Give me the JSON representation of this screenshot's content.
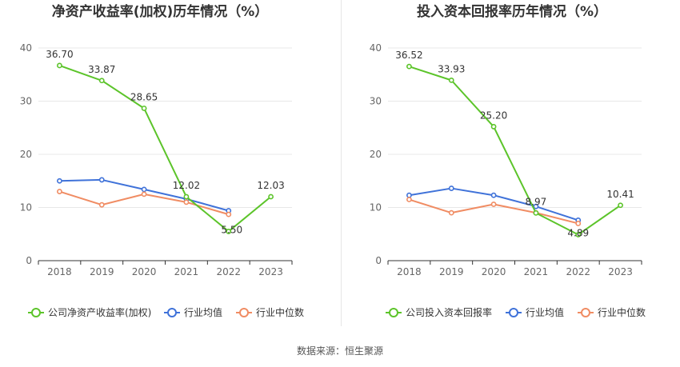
{
  "footer": {
    "source": "数据来源：恒生聚源"
  },
  "colors": {
    "company": "#5cc42a",
    "industry_avg": "#3f72d9",
    "industry_median": "#f08c63"
  },
  "chart_data": [
    {
      "type": "line",
      "title": "净资产收益率(加权)历年情况（%）",
      "categories": [
        "2018",
        "2019",
        "2020",
        "2021",
        "2022",
        "2023"
      ],
      "ylim": [
        0,
        40
      ],
      "yticks": [
        0,
        10,
        20,
        30,
        40
      ],
      "grid": true,
      "legend_position": "bottom",
      "series": [
        {
          "name": "公司净资产收益率(加权)",
          "values": [
            36.7,
            33.87,
            28.65,
            12.02,
            5.5,
            12.03
          ],
          "labels": [
            "36.70",
            "33.87",
            "28.65",
            "12.02",
            "5.50",
            "12.03"
          ],
          "color": "#5cc42a"
        },
        {
          "name": "行业均值",
          "values": [
            15.0,
            15.2,
            13.4,
            11.6,
            9.4,
            null
          ],
          "color": "#3f72d9"
        },
        {
          "name": "行业中位数",
          "values": [
            13.0,
            10.5,
            12.5,
            11.0,
            8.7,
            null
          ],
          "color": "#f08c63"
        }
      ]
    },
    {
      "type": "line",
      "title": "投入资本回报率历年情况（%）",
      "categories": [
        "2018",
        "2019",
        "2020",
        "2021",
        "2022",
        "2023"
      ],
      "ylim": [
        0,
        40
      ],
      "yticks": [
        0,
        10,
        20,
        30,
        40
      ],
      "grid": true,
      "legend_position": "bottom",
      "series": [
        {
          "name": "公司投入资本回报率",
          "values": [
            36.52,
            33.93,
            25.2,
            8.97,
            4.89,
            10.41
          ],
          "labels": [
            "36.52",
            "33.93",
            "25.20",
            "8.97",
            "4.89",
            "10.41"
          ],
          "color": "#5cc42a"
        },
        {
          "name": "行业均值",
          "values": [
            12.3,
            13.6,
            12.3,
            10.2,
            7.6,
            null
          ],
          "color": "#3f72d9"
        },
        {
          "name": "行业中位数",
          "values": [
            11.5,
            9.0,
            10.6,
            9.0,
            7.0,
            null
          ],
          "color": "#f08c63"
        }
      ]
    }
  ]
}
